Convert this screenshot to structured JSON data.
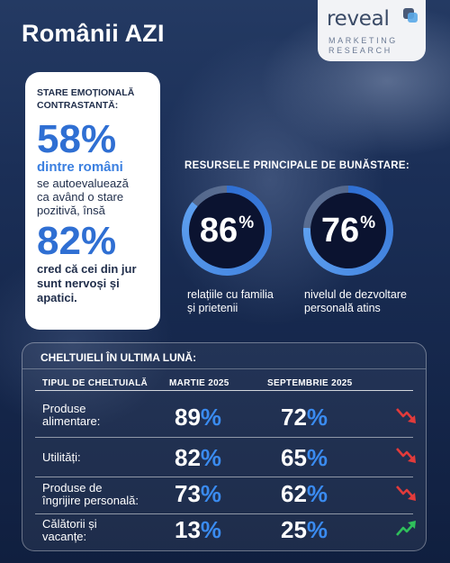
{
  "header": {
    "title": "Românii AZI"
  },
  "logo": {
    "word": "reveal",
    "line1": "MARKETING",
    "line2": "RESEARCH"
  },
  "left_card": {
    "heading_line1": "STARE EMOȚIONALĂ",
    "heading_line2": "CONTRASTANTĂ:",
    "stat1_value": "58",
    "stat1_pct": "%",
    "stat1_subject": "dintre români",
    "stat1_text_l1": "se autoevaluează",
    "stat1_text_l2": "ca având o stare",
    "stat1_text_l3": "pozitivă, însă",
    "stat2_value": "82",
    "stat2_pct": "%",
    "stat2_text_l1": "cred că cei din jur",
    "stat2_text_l2": "sunt nervoși și",
    "stat2_text_l3": "apatici."
  },
  "resources": {
    "title": "RESURSELE PRINCIPALE  DE BUNĂSTARE:",
    "items": [
      {
        "value": "86",
        "pct": "%",
        "fraction": 0.86,
        "caption_l1": "relațiile cu familia",
        "caption_l2": "și prietenii"
      },
      {
        "value": "76",
        "pct": "%",
        "fraction": 0.76,
        "caption_l1": "nivelul de dezvoltare",
        "caption_l2": "personală atins"
      }
    ]
  },
  "expenses": {
    "title": "CHELTUIELI ÎN ULTIMA LUNĂ:",
    "headers": [
      "TIPUL DE CHELTUIALĂ",
      "MARTIE 2025",
      "SEPTEMBRIE 2025"
    ],
    "rows": [
      {
        "cat_l1": "Produse",
        "cat_l2": "alimentare:",
        "march": "89",
        "sept": "72",
        "trend": "down"
      },
      {
        "cat_l1": "Utilități:",
        "cat_l2": "",
        "march": "82",
        "sept": "65",
        "trend": "down"
      },
      {
        "cat_l1": "Produse de",
        "cat_l2": "îngrijire personală:",
        "march": "73",
        "sept": "62",
        "trend": "down"
      },
      {
        "cat_l1": "Călătorii și",
        "cat_l2": "vacanțe:",
        "march": "13",
        "sept": "25",
        "trend": "up"
      }
    ],
    "pct": "%"
  },
  "colors": {
    "accent_blue": "#2f6fd3",
    "down_red": "#e23b3b",
    "up_green": "#2fbf5b"
  }
}
